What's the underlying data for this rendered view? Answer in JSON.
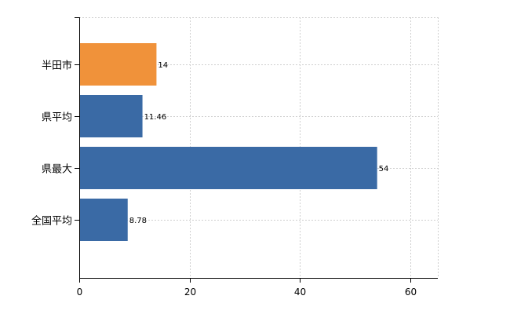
{
  "chart_data": {
    "type": "bar",
    "orientation": "horizontal",
    "categories": [
      "半田市",
      "県平均",
      "県最大",
      "全国平均"
    ],
    "values": [
      14,
      11.46,
      54,
      8.78
    ],
    "value_labels": [
      "14",
      "11.46",
      "54",
      "8.78"
    ],
    "bar_colors": [
      "#f0923a",
      "#3a6aa5",
      "#3a6aa5",
      "#3a6aa5"
    ],
    "xlim": [
      0,
      65
    ],
    "xticks": [
      0,
      20,
      40,
      60
    ],
    "grid": true,
    "legend": "none",
    "title": "",
    "xlabel": "",
    "ylabel": ""
  }
}
